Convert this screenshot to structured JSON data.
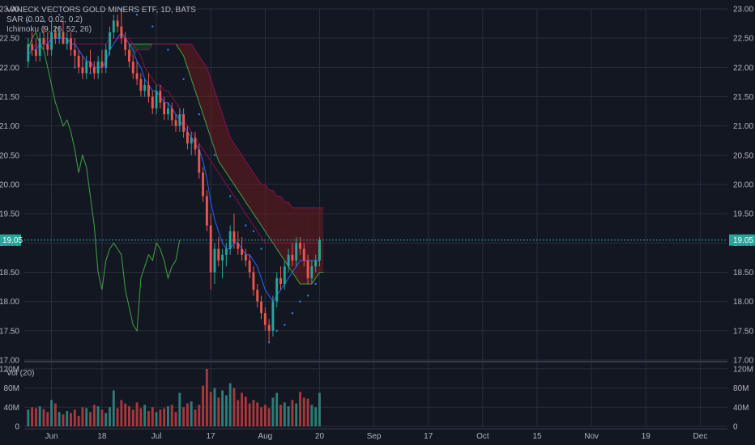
{
  "colors": {
    "background": "#131722",
    "grid": "#2a2e39",
    "text": "#b2b5be",
    "up": "#26a69a",
    "down": "#ef5350",
    "up_volume": "#2d7d78",
    "down_volume": "#a8383b",
    "sar": "#3179f5",
    "conversion_line": "#2962ff",
    "base_line": "#880e4f",
    "lagging_span": "#43a047",
    "kumo_up": "#1b5e20",
    "kumo_down": "#7f1d1d",
    "price_line": "#26a69a",
    "last_price_label_bg": "#26a69a"
  },
  "legend": {
    "title": "VANECK VECTORS GOLD MINERS ETF, 1D, BATS",
    "sar": "SAR (0.02, 0.02, 0.2)",
    "ichimoku": "Ichimoku (9, 26, 52, 26)",
    "volume": "Vol (20)"
  },
  "last_price_label": "19.05",
  "chart_data": [
    {
      "type": "candlestick",
      "title": "VANECK VECTORS GOLD MINERS ETF, 1D, BATS",
      "x_ticks": [
        "Jun",
        "18",
        "Jul",
        "17",
        "Aug",
        "20",
        "Sep",
        "17",
        "Oct",
        "15",
        "Nov",
        "19",
        "Dec"
      ],
      "x_tick_day": [
        6,
        19,
        33,
        47,
        61,
        75,
        89,
        103,
        117,
        131,
        145,
        159,
        173
      ],
      "y_ticks": [
        "17.00",
        "17.50",
        "18.00",
        "18.50",
        "19.00",
        "19.50",
        "20.00",
        "20.50",
        "21.00",
        "21.50",
        "22.00",
        "22.50",
        "23.00"
      ],
      "ylim": [
        17.0,
        23.0
      ],
      "xlim": [
        -1,
        180
      ],
      "last_price": 19.05,
      "candles": [
        [
          0,
          22.1,
          22.5,
          22.0,
          22.4
        ],
        [
          1,
          22.4,
          22.6,
          22.2,
          22.3
        ],
        [
          2,
          22.3,
          22.5,
          22.1,
          22.2
        ],
        [
          3,
          22.2,
          22.6,
          22.1,
          22.5
        ],
        [
          4,
          22.5,
          22.7,
          22.3,
          22.4
        ],
        [
          5,
          22.4,
          22.6,
          22.2,
          22.3
        ],
        [
          6,
          22.3,
          22.8,
          22.2,
          22.6
        ],
        [
          7,
          22.6,
          22.7,
          22.4,
          22.5
        ],
        [
          8,
          22.5,
          22.7,
          22.4,
          22.6
        ],
        [
          9,
          22.6,
          22.8,
          22.4,
          22.4
        ],
        [
          10,
          22.4,
          22.6,
          22.3,
          22.5
        ],
        [
          11,
          22.5,
          22.6,
          22.2,
          22.3
        ],
        [
          12,
          22.3,
          22.5,
          22.0,
          22.2
        ],
        [
          13,
          22.2,
          22.3,
          21.9,
          22.0
        ],
        [
          14,
          22.0,
          22.2,
          21.8,
          21.9
        ],
        [
          15,
          21.9,
          22.2,
          21.8,
          22.1
        ],
        [
          16,
          22.1,
          22.3,
          21.9,
          22.0
        ],
        [
          17,
          22.0,
          22.1,
          21.8,
          21.9
        ],
        [
          18,
          21.9,
          22.2,
          21.8,
          22.1
        ],
        [
          19,
          22.1,
          22.3,
          21.9,
          22.0
        ],
        [
          20,
          22.0,
          22.4,
          21.9,
          22.3
        ],
        [
          21,
          22.3,
          22.7,
          22.2,
          22.6
        ],
        [
          22,
          22.6,
          22.9,
          22.5,
          22.8
        ],
        [
          23,
          22.8,
          22.9,
          22.6,
          22.7
        ],
        [
          24,
          22.7,
          23.0,
          22.4,
          22.5
        ],
        [
          25,
          22.5,
          22.6,
          22.2,
          22.3
        ],
        [
          26,
          22.3,
          22.4,
          22.0,
          22.1
        ],
        [
          27,
          22.1,
          22.2,
          21.8,
          21.9
        ],
        [
          28,
          21.9,
          22.1,
          21.7,
          21.8
        ],
        [
          29,
          21.8,
          21.9,
          21.5,
          21.6
        ],
        [
          30,
          21.6,
          21.8,
          21.5,
          21.7
        ],
        [
          31,
          21.7,
          21.9,
          21.4,
          21.5
        ],
        [
          32,
          21.5,
          21.6,
          21.2,
          21.3
        ],
        [
          33,
          21.3,
          21.7,
          21.2,
          21.6
        ],
        [
          34,
          21.6,
          21.7,
          21.3,
          21.4
        ],
        [
          35,
          21.4,
          21.5,
          21.1,
          21.2
        ],
        [
          36,
          21.2,
          21.4,
          21.1,
          21.3
        ],
        [
          37,
          21.3,
          21.4,
          21.0,
          21.1
        ],
        [
          38,
          21.1,
          21.2,
          20.9,
          21.0
        ],
        [
          39,
          21.0,
          21.3,
          20.9,
          21.2
        ],
        [
          40,
          21.2,
          21.3,
          20.8,
          20.9
        ],
        [
          41,
          20.9,
          21.0,
          20.6,
          20.7
        ],
        [
          42,
          20.7,
          20.9,
          20.5,
          20.8
        ],
        [
          43,
          20.8,
          20.9,
          20.5,
          20.6
        ],
        [
          44,
          20.6,
          20.7,
          20.1,
          20.2
        ],
        [
          45,
          20.2,
          20.3,
          19.7,
          19.8
        ],
        [
          46,
          19.8,
          19.9,
          19.2,
          19.3
        ],
        [
          47,
          19.3,
          19.5,
          18.2,
          18.5
        ],
        [
          48,
          18.5,
          19.0,
          18.3,
          18.9
        ],
        [
          49,
          18.9,
          19.1,
          18.6,
          18.7
        ],
        [
          50,
          18.7,
          18.9,
          18.4,
          18.8
        ],
        [
          51,
          18.8,
          19.0,
          18.6,
          18.9
        ],
        [
          52,
          18.9,
          19.3,
          18.8,
          19.2
        ],
        [
          53,
          19.2,
          19.5,
          18.9,
          19.0
        ],
        [
          54,
          19.0,
          19.2,
          18.8,
          18.9
        ],
        [
          55,
          18.9,
          19.1,
          18.7,
          18.8
        ],
        [
          56,
          18.8,
          18.9,
          18.6,
          18.7
        ],
        [
          57,
          18.7,
          18.8,
          18.4,
          18.5
        ],
        [
          58,
          18.5,
          18.6,
          18.1,
          18.2
        ],
        [
          59,
          18.2,
          18.3,
          17.9,
          18.0
        ],
        [
          60,
          18.0,
          18.1,
          17.7,
          17.8
        ],
        [
          61,
          17.8,
          17.9,
          17.5,
          17.6
        ],
        [
          62,
          17.6,
          17.7,
          17.3,
          17.5
        ],
        [
          63,
          17.5,
          18.1,
          17.4,
          18.0
        ],
        [
          64,
          18.0,
          18.5,
          17.9,
          18.4
        ],
        [
          65,
          18.4,
          18.6,
          18.2,
          18.3
        ],
        [
          66,
          18.3,
          18.7,
          18.2,
          18.6
        ],
        [
          67,
          18.6,
          18.9,
          18.5,
          18.8
        ],
        [
          68,
          18.8,
          19.0,
          18.6,
          18.7
        ],
        [
          69,
          18.7,
          19.1,
          18.6,
          19.0
        ],
        [
          70,
          19.0,
          19.1,
          18.8,
          18.9
        ],
        [
          71,
          18.9,
          19.0,
          18.6,
          18.7
        ],
        [
          72,
          18.7,
          18.8,
          18.3,
          18.4
        ],
        [
          73,
          18.4,
          18.7,
          18.3,
          18.6
        ],
        [
          74,
          18.6,
          18.8,
          18.5,
          18.7
        ],
        [
          75,
          18.7,
          19.1,
          18.6,
          19.05
        ]
      ],
      "volume": {
        "name": "Vol (20)",
        "ylim": [
          0,
          130
        ],
        "y_ticks": [
          "0",
          "40M",
          "80M",
          "120M"
        ],
        "values": [
          35,
          40,
          38,
          42,
          36,
          30,
          55,
          48,
          30,
          25,
          32,
          28,
          35,
          22,
          40,
          38,
          30,
          45,
          42,
          35,
          28,
          40,
          75,
          38,
          55,
          48,
          42,
          35,
          50,
          38,
          45,
          32,
          40,
          30,
          35,
          38,
          42,
          45,
          30,
          70,
          40,
          48,
          52,
          35,
          45,
          85,
          120,
          72,
          80,
          60,
          75,
          65,
          90,
          80,
          55,
          70,
          62,
          48,
          55,
          50,
          40,
          45,
          38,
          60,
          70,
          45,
          50,
          42,
          55,
          48,
          72,
          60,
          58,
          45,
          40,
          70
        ]
      },
      "ichimoku_tenkan": [
        22.2,
        22.3,
        22.3,
        22.4,
        22.4,
        22.4,
        22.5,
        22.5,
        22.5,
        22.5,
        22.5,
        22.4,
        22.4,
        22.3,
        22.2,
        22.1,
        22.1,
        22.0,
        22.0,
        22.0,
        22.1,
        22.3,
        22.4,
        22.5,
        22.6,
        22.5,
        22.4,
        22.3,
        22.1,
        22.0,
        21.8,
        21.7,
        21.6,
        21.6,
        21.5,
        21.4,
        21.4,
        21.3,
        21.2,
        21.1,
        21.0,
        20.9,
        20.8,
        20.7,
        20.6,
        20.4,
        20.1,
        19.7,
        19.4,
        19.2,
        19.0,
        18.9,
        18.9,
        19.0,
        19.0,
        18.9,
        18.8,
        18.8,
        18.7,
        18.6,
        18.4,
        18.2,
        18.1,
        18.0,
        18.1,
        18.2,
        18.3,
        18.4,
        18.5,
        18.6,
        18.7,
        18.7,
        18.7,
        18.7,
        18.7,
        18.7
      ],
      "ichimoku_kijun": [
        22.3,
        22.3,
        22.4,
        22.4,
        22.4,
        22.5,
        22.5,
        22.5,
        22.5,
        22.5,
        22.5,
        22.4,
        22.4,
        22.4,
        22.4,
        22.4,
        22.4,
        22.4,
        22.4,
        22.4,
        22.4,
        22.5,
        22.5,
        22.5,
        22.5,
        22.5,
        22.5,
        22.4,
        22.3,
        22.2,
        22.0,
        21.9,
        21.8,
        21.7,
        21.7,
        21.6,
        21.6,
        21.5,
        21.4,
        21.3,
        21.1,
        21.0,
        20.9,
        20.8,
        20.7,
        20.6,
        20.5,
        20.4,
        20.3,
        20.2,
        20.1,
        20.0,
        19.9,
        19.8,
        19.7,
        19.6,
        19.5,
        19.4,
        19.3,
        19.2,
        19.1,
        19.0,
        19.0,
        19.0,
        19.0,
        19.0,
        19.0,
        19.0,
        19.0,
        19.0,
        19.0,
        19.0,
        19.0,
        19.0,
        19.0,
        19.0
      ],
      "ichimoku_lagging_span": [
        22.3,
        22.5,
        22.6,
        22.4,
        22.3,
        22.0,
        21.7,
        21.4,
        21.2,
        21.0,
        21.1,
        20.9,
        20.6,
        20.2,
        20.5,
        20.3,
        19.8,
        19.3,
        18.5,
        18.2,
        18.7,
        18.9,
        19.0,
        18.9,
        18.8,
        18.2,
        17.9,
        17.6,
        17.5,
        18.4,
        18.6,
        18.8,
        18.7,
        19.0,
        18.9,
        18.7,
        18.4,
        18.6,
        18.7,
        19.05
      ],
      "ichimoku_span_a": [
        22.4,
        22.4,
        22.4,
        22.4,
        22.4,
        22.4,
        22.4,
        22.4,
        22.4,
        22.4,
        22.4,
        22.4,
        22.4,
        22.3,
        22.2,
        22.0,
        21.8,
        21.6,
        21.4,
        21.2,
        21.0,
        20.8,
        20.6,
        20.4,
        20.3,
        20.2,
        20.1,
        20.0,
        19.9,
        19.8,
        19.7,
        19.6,
        19.5,
        19.4,
        19.3,
        19.2,
        19.1,
        19.0,
        18.9,
        18.8,
        18.7,
        18.6,
        18.5,
        18.4,
        18.3,
        18.3,
        18.3,
        18.3,
        18.4,
        18.5,
        18.5
      ],
      "ichimoku_span_b": [
        22.2,
        22.2,
        22.3,
        22.3,
        22.3,
        22.3,
        22.4,
        22.4,
        22.4,
        22.4,
        22.4,
        22.4,
        22.4,
        22.4,
        22.4,
        22.4,
        22.4,
        22.3,
        22.2,
        22.1,
        22.0,
        21.8,
        21.6,
        21.4,
        21.2,
        21.0,
        20.8,
        20.7,
        20.6,
        20.5,
        20.4,
        20.3,
        20.2,
        20.1,
        20.0,
        20.0,
        19.9,
        19.9,
        19.8,
        19.8,
        19.7,
        19.7,
        19.6,
        19.6,
        19.6,
        19.6,
        19.6,
        19.6,
        19.6,
        19.6,
        19.6
      ],
      "sar": [
        [
          0,
          22.8
        ],
        [
          4,
          22.8
        ],
        [
          8,
          22.9
        ],
        [
          12,
          22.0
        ],
        [
          16,
          21.9
        ],
        [
          20,
          22.0
        ],
        [
          24,
          23.0
        ],
        [
          28,
          22.9
        ],
        [
          32,
          22.7
        ],
        [
          36,
          22.3
        ],
        [
          40,
          21.8
        ],
        [
          44,
          21.2
        ],
        [
          48,
          20.5
        ],
        [
          52,
          19.8
        ],
        [
          56,
          19.3
        ],
        [
          58,
          19.2
        ],
        [
          60,
          18.9
        ],
        [
          62,
          17.3
        ],
        [
          64,
          17.5
        ],
        [
          66,
          17.6
        ],
        [
          68,
          17.8
        ],
        [
          70,
          18.0
        ],
        [
          72,
          18.1
        ],
        [
          74,
          18.3
        ]
      ]
    }
  ]
}
